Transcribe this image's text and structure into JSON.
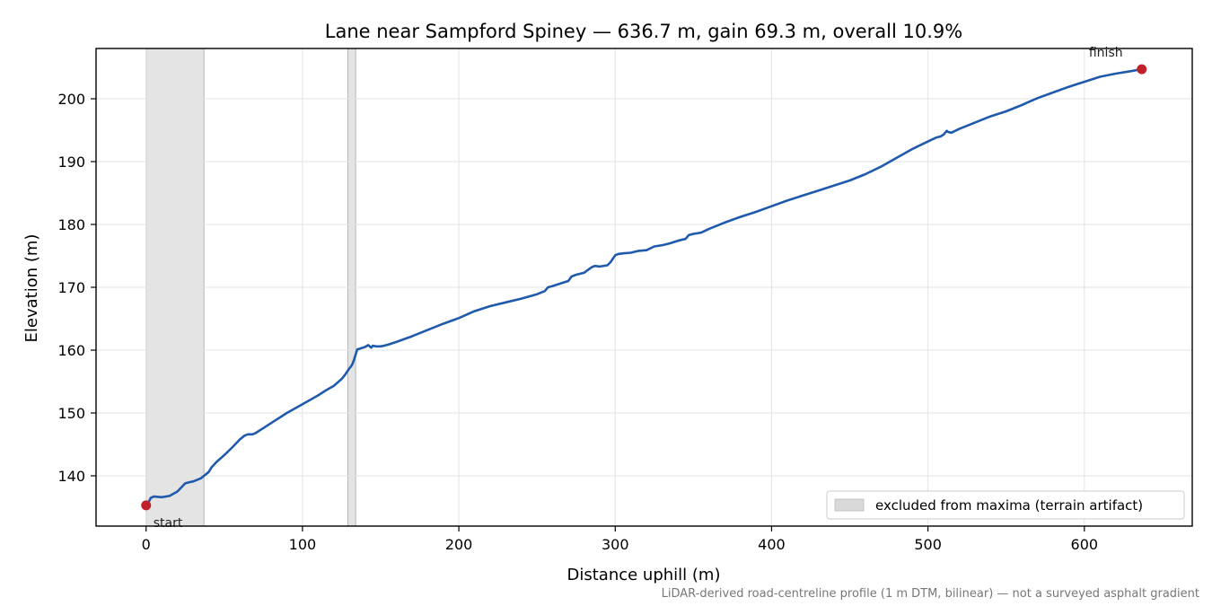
{
  "chart_data": {
    "type": "line",
    "title": "Lane near Sampford Spiney — 636.7 m, gain 69.3 m, overall 10.9%",
    "xlabel": "Distance uphill (m)",
    "ylabel": "Elevation (m)",
    "xlim": [
      -32,
      669
    ],
    "ylim": [
      132,
      208
    ],
    "x_ticks": [
      0,
      100,
      200,
      300,
      400,
      500,
      600
    ],
    "y_ticks": [
      140,
      150,
      160,
      170,
      180,
      190,
      200
    ],
    "grid": true,
    "legend_placement": "lower-right",
    "line_color": "#1f5aad",
    "marker_color": "#c0202a",
    "band_color": "#d9d9d9",
    "series": [
      {
        "x": [
          0,
          2,
          3,
          5,
          10,
          15,
          20,
          25,
          28,
          30,
          35,
          38,
          40,
          42,
          45,
          50,
          55,
          60,
          63,
          65,
          68,
          70,
          75,
          80,
          90,
          100,
          110,
          115,
          120,
          125,
          127,
          130,
          131,
          132,
          133,
          135,
          140,
          142,
          143,
          144,
          145,
          147,
          150,
          152,
          155,
          160,
          170,
          180,
          190,
          200,
          210,
          220,
          230,
          240,
          250,
          255,
          257,
          260,
          265,
          270,
          272,
          275,
          280,
          285,
          287,
          290,
          295,
          297,
          300,
          302,
          305,
          310,
          315,
          320,
          325,
          330,
          332,
          335,
          340,
          345,
          347,
          350,
          355,
          360,
          370,
          380,
          390,
          400,
          410,
          420,
          430,
          440,
          450,
          460,
          470,
          480,
          490,
          500,
          505,
          508,
          510,
          512,
          513,
          515,
          520,
          530,
          540,
          550,
          560,
          570,
          580,
          590,
          595,
          600,
          610,
          620,
          630,
          636.7
        ],
        "y": [
          135.3,
          136.0,
          136.5,
          136.7,
          136.6,
          136.8,
          137.5,
          138.8,
          139.0,
          139.1,
          139.6,
          140.2,
          140.6,
          141.4,
          142.2,
          143.3,
          144.5,
          145.8,
          146.4,
          146.6,
          146.6,
          146.8,
          147.6,
          148.4,
          150.0,
          151.4,
          152.8,
          153.6,
          154.3,
          155.4,
          156.0,
          157.1,
          157.4,
          157.8,
          158.5,
          160.1,
          160.5,
          160.8,
          160.6,
          160.4,
          160.7,
          160.6,
          160.6,
          160.7,
          160.9,
          161.3,
          162.2,
          163.2,
          164.2,
          165.1,
          166.2,
          167.0,
          167.6,
          168.2,
          168.9,
          169.4,
          170.0,
          170.2,
          170.6,
          171.0,
          171.7,
          172.0,
          172.3,
          173.2,
          173.4,
          173.3,
          173.5,
          174.0,
          175.1,
          175.3,
          175.4,
          175.5,
          175.8,
          175.9,
          176.5,
          176.7,
          176.8,
          177.0,
          177.4,
          177.7,
          178.3,
          178.5,
          178.7,
          179.3,
          180.3,
          181.2,
          182.0,
          182.9,
          183.8,
          184.6,
          185.4,
          186.2,
          187.0,
          188.0,
          189.2,
          190.6,
          192.0,
          193.2,
          193.8,
          194.0,
          194.3,
          194.9,
          194.7,
          194.6,
          195.2,
          196.2,
          197.2,
          198.0,
          199.0,
          200.1,
          201.0,
          201.9,
          202.3,
          202.7,
          203.5,
          204.0,
          204.4,
          204.7
        ]
      }
    ],
    "excluded_ranges": [
      [
        0,
        37
      ],
      [
        129,
        134
      ]
    ],
    "points": [
      {
        "label": "start",
        "x": 0,
        "y": 135.3
      },
      {
        "label": "finish",
        "x": 636.7,
        "y": 204.7
      }
    ],
    "legend": [
      "excluded from maxima (terrain artifact)"
    ],
    "footnote": "LiDAR-derived road-centreline profile (1 m DTM, bilinear) — not a surveyed asphalt gradient"
  }
}
